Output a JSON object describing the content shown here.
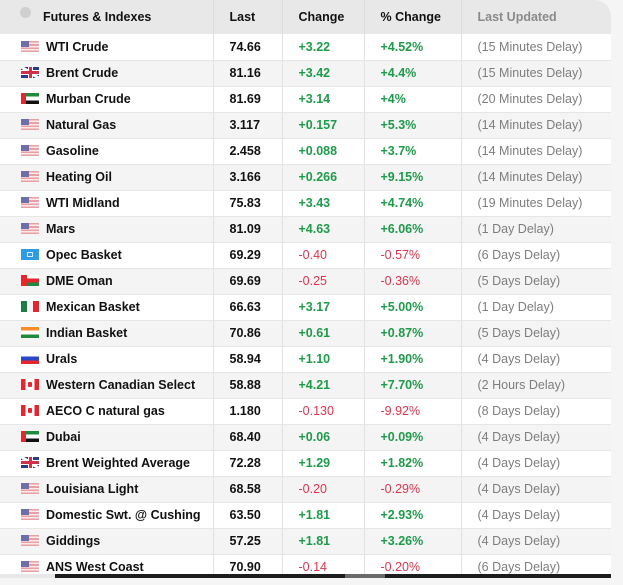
{
  "table": {
    "headers": {
      "name": "Futures & Indexes",
      "last": "Last",
      "change": "Change",
      "pct_change": "% Change",
      "last_updated": "Last Updated"
    },
    "rows": [
      {
        "flag": "us",
        "name": "WTI Crude",
        "last": "74.66",
        "change": "+3.22",
        "pct": "+4.52%",
        "updated": "(15 Minutes Delay)",
        "dir": "up"
      },
      {
        "flag": "gb",
        "name": "Brent Crude",
        "last": "81.16",
        "change": "+3.42",
        "pct": "+4.4%",
        "updated": "(15 Minutes Delay)",
        "dir": "up"
      },
      {
        "flag": "ae",
        "name": "Murban Crude",
        "last": "81.69",
        "change": "+3.14",
        "pct": "+4%",
        "updated": "(20 Minutes Delay)",
        "dir": "up"
      },
      {
        "flag": "us",
        "name": "Natural Gas",
        "last": "3.117",
        "change": "+0.157",
        "pct": "+5.3%",
        "updated": "(14 Minutes Delay)",
        "dir": "up"
      },
      {
        "flag": "us",
        "name": "Gasoline",
        "last": "2.458",
        "change": "+0.088",
        "pct": "+3.7%",
        "updated": "(14 Minutes Delay)",
        "dir": "up"
      },
      {
        "flag": "us",
        "name": "Heating Oil",
        "last": "3.166",
        "change": "+0.266",
        "pct": "+9.15%",
        "updated": "(14 Minutes Delay)",
        "dir": "up"
      },
      {
        "flag": "us",
        "name": "WTI Midland",
        "last": "75.83",
        "change": "+3.43",
        "pct": "+4.74%",
        "updated": "(19 Minutes Delay)",
        "dir": "up"
      },
      {
        "flag": "us",
        "name": "Mars",
        "last": "81.09",
        "change": "+4.63",
        "pct": "+6.06%",
        "updated": "(1 Day Delay)",
        "dir": "up"
      },
      {
        "flag": "opec",
        "name": "Opec Basket",
        "last": "69.29",
        "change": "-0.40",
        "pct": "-0.57%",
        "updated": "(6 Days Delay)",
        "dir": "down"
      },
      {
        "flag": "om",
        "name": "DME Oman",
        "last": "69.69",
        "change": "-0.25",
        "pct": "-0.36%",
        "updated": "(5 Days Delay)",
        "dir": "down"
      },
      {
        "flag": "mx",
        "name": "Mexican Basket",
        "last": "66.63",
        "change": "+3.17",
        "pct": "+5.00%",
        "updated": "(1 Day Delay)",
        "dir": "up"
      },
      {
        "flag": "in",
        "name": "Indian Basket",
        "last": "70.86",
        "change": "+0.61",
        "pct": "+0.87%",
        "updated": "(5 Days Delay)",
        "dir": "up"
      },
      {
        "flag": "ru",
        "name": "Urals",
        "last": "58.94",
        "change": "+1.10",
        "pct": "+1.90%",
        "updated": "(4 Days Delay)",
        "dir": "up"
      },
      {
        "flag": "ca",
        "name": "Western Canadian Select",
        "last": "58.88",
        "change": "+4.21",
        "pct": "+7.70%",
        "updated": "(2 Hours Delay)",
        "dir": "up"
      },
      {
        "flag": "ca",
        "name": "AECO C natural gas",
        "last": "1.180",
        "change": "-0.130",
        "pct": "-9.92%",
        "updated": "(8 Days Delay)",
        "dir": "down"
      },
      {
        "flag": "ae",
        "name": "Dubai",
        "last": "68.40",
        "change": "+0.06",
        "pct": "+0.09%",
        "updated": "(4 Days Delay)",
        "dir": "up"
      },
      {
        "flag": "gb",
        "name": "Brent Weighted Average",
        "last": "72.28",
        "change": "+1.29",
        "pct": "+1.82%",
        "updated": "(4 Days Delay)",
        "dir": "up"
      },
      {
        "flag": "us",
        "name": "Louisiana Light",
        "last": "68.58",
        "change": "-0.20",
        "pct": "-0.29%",
        "updated": "(4 Days Delay)",
        "dir": "down"
      },
      {
        "flag": "us",
        "name": "Domestic Swt. @ Cushing",
        "last": "63.50",
        "change": "+1.81",
        "pct": "+2.93%",
        "updated": "(4 Days Delay)",
        "dir": "up"
      },
      {
        "flag": "us",
        "name": "Giddings",
        "last": "57.25",
        "change": "+1.81",
        "pct": "+3.26%",
        "updated": "(4 Days Delay)",
        "dir": "up"
      },
      {
        "flag": "us",
        "name": "ANS West Coast",
        "last": "70.90",
        "change": "-0.14",
        "pct": "-0.20%",
        "updated": "(6 Days Delay)",
        "dir": "down"
      }
    ]
  },
  "colors": {
    "positive": "#1e9b4a",
    "negative": "#e0334b",
    "header_bg": "#e8e8e8",
    "muted_text": "#7d7d7d"
  }
}
